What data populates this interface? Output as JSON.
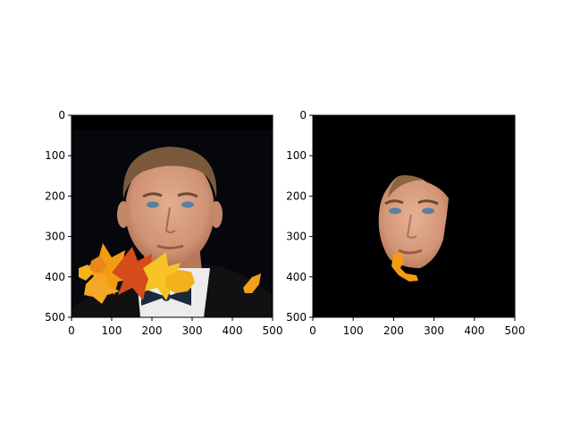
{
  "chart_data": [
    {
      "type": "image",
      "image_shape": [
        500,
        500
      ],
      "xlim": [
        0,
        500
      ],
      "ylim": [
        500,
        0
      ],
      "x_ticks": [
        0,
        100,
        200,
        300,
        400,
        500
      ],
      "y_ticks": [
        0,
        100,
        200,
        300,
        400,
        500
      ],
      "x_tick_labels": [
        "0",
        "100",
        "200",
        "300",
        "400",
        "500"
      ],
      "y_tick_labels": [
        "0",
        "100",
        "200",
        "300",
        "400",
        "500"
      ],
      "content": "portrait of a man in a tuxedo with bow tie, dark background, overlaid with orange autumn leaves at the bottom"
    },
    {
      "type": "image",
      "image_shape": [
        500,
        500
      ],
      "xlim": [
        0,
        500
      ],
      "ylim": [
        500,
        0
      ],
      "x_ticks": [
        0,
        100,
        200,
        300,
        400,
        500
      ],
      "y_ticks": [
        0,
        100,
        200,
        300,
        400,
        500
      ],
      "x_tick_labels": [
        "0",
        "100",
        "200",
        "300",
        "400",
        "500"
      ],
      "y_tick_labels": [
        "0",
        "100",
        "200",
        "300",
        "400",
        "500"
      ],
      "content": "segmented face region of the same portrait on a black background, with a small orange leaf fragment below the chin"
    }
  ],
  "colors": {
    "background_dark": "#05070d",
    "mask_background": "#000000",
    "skin": "#d9a183",
    "hair": "#7a5a3a",
    "suit": "#111114",
    "shirt": "#ececec",
    "bow_tie": "#1a2a3a",
    "leaf_orange": "#f39c12",
    "leaf_red": "#d64b1a",
    "leaf_yellow": "#f7c325"
  }
}
